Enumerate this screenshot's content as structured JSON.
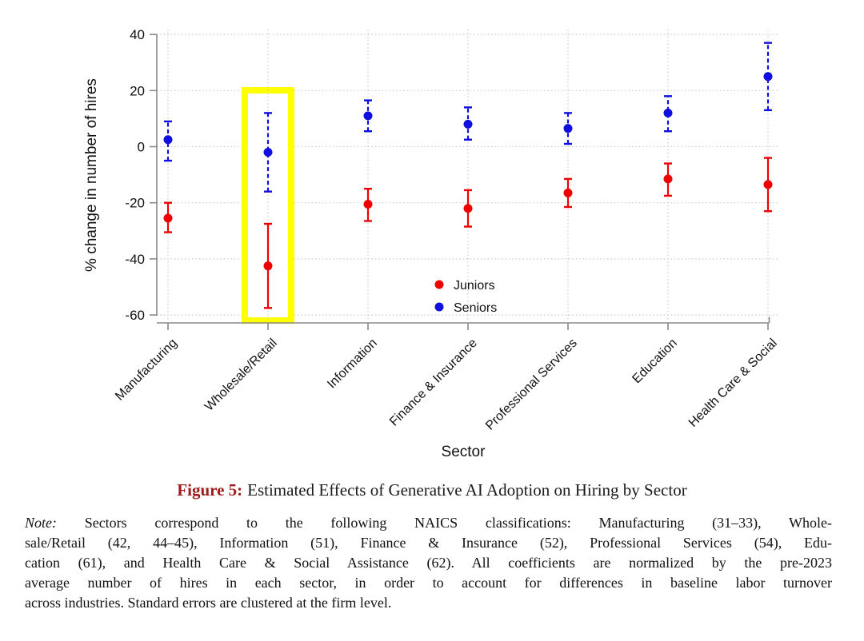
{
  "figure": {
    "caption_label": "Figure 5:",
    "caption_label_color": "#9e1a1a",
    "caption_text": "Estimated Effects of Generative AI Adoption on Hiring by Sector",
    "note_label": "Note:",
    "note_lines": [
      " Sectors correspond to the following NAICS classifications: Manufacturing (31–33), Whole-",
      "sale/Retail (42, 44–45), Information (51), Finance & Insurance (52), Professional Services (54), Edu-",
      "cation (61), and Health Care & Social Assistance (62). All coefficients are normalized by the pre-2023",
      "average number of hires in each sector, in order to account for differences in baseline labor turnover",
      "across industries. Standard errors are clustered at the firm level."
    ]
  },
  "chart_data": {
    "type": "scatter",
    "title": "",
    "xlabel": "Sector",
    "ylabel": "% change in number of hires",
    "ylim": [
      -60,
      40
    ],
    "yticks": [
      40,
      20,
      0,
      -20,
      -40,
      -60
    ],
    "grid": true,
    "legend_position": "inside-bottom-center",
    "categories": [
      "Manufacturing",
      "Wholesale/Retail",
      "Information",
      "Finance & Insurance",
      "Professional Services",
      "Education",
      "Health Care & Social"
    ],
    "series": [
      {
        "name": "Juniors",
        "color": "#ee0000",
        "line_style": "solid",
        "values": [
          -25.5,
          -42.5,
          -20.5,
          -22,
          -16.5,
          -11.5,
          -13.5
        ],
        "ci_low": [
          -30.5,
          -57.5,
          -26.5,
          -28.5,
          -21.5,
          -17.5,
          -23
        ],
        "ci_high": [
          -20,
          -27.5,
          -15,
          -15.5,
          -11.5,
          -6,
          -4
        ]
      },
      {
        "name": "Seniors",
        "color": "#0f0fe0",
        "line_style": "dashed",
        "values": [
          2.5,
          -2,
          11,
          8,
          6.5,
          12,
          25
        ],
        "ci_low": [
          -5,
          -16,
          5.5,
          2.5,
          1,
          5.5,
          13
        ],
        "ci_high": [
          9,
          12,
          16.5,
          14,
          12,
          18,
          37
        ]
      }
    ],
    "highlight_box": {
      "category": "Wholesale/Retail",
      "color": "#ffff00"
    }
  }
}
